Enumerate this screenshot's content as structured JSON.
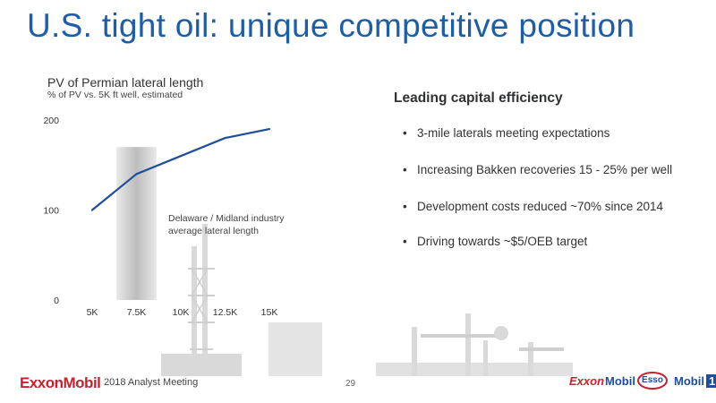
{
  "title": "U.S. tight oil: unique competitive position",
  "chart": {
    "title": "PV of Permian lateral length",
    "subtitle": "% of PV vs. 5K ft well, estimated",
    "annotation_line1": "Delaware / Midland industry",
    "annotation_line2": "average lateral length"
  },
  "chart_data": {
    "type": "line",
    "title": "PV of Permian lateral length",
    "subtitle": "% of PV vs. 5K ft well, estimated",
    "categories": [
      "5K",
      "7.5K",
      "10K",
      "12.5K",
      "15K"
    ],
    "series": [
      {
        "values": [
          100,
          140,
          160,
          180,
          190
        ]
      }
    ],
    "ylim": [
      0,
      200
    ],
    "yticks": [
      "200",
      "100",
      "0"
    ],
    "highlight_band": {
      "category": "7.5K",
      "label": "Delaware / Midland industry average lateral length"
    },
    "line_color": "#1f4e9c",
    "grid": false
  },
  "right_panel": {
    "heading": "Leading capital efficiency",
    "bullets": [
      "3-mile laterals meeting expectations",
      "Increasing Bakken recoveries 15 - 25% per well",
      "Development costs reduced ~70% since 2014",
      "Driving towards ~$5/OEB target"
    ],
    "bullet_char": "•"
  },
  "footer": {
    "logo": "ExxonMobil",
    "meeting": "2018 Analyst Meeting",
    "page": "29",
    "brands": {
      "exxon": "Exxon",
      "mobil": "Mobil",
      "esso": "Esso",
      "mobil1_text": "Mobil",
      "mobil1_num": "1"
    }
  },
  "colors": {
    "title": "#1d5ea8",
    "line": "#1f4e9c",
    "brand_red": "#cc1f2d",
    "brand_blue": "#1d4fa0"
  }
}
